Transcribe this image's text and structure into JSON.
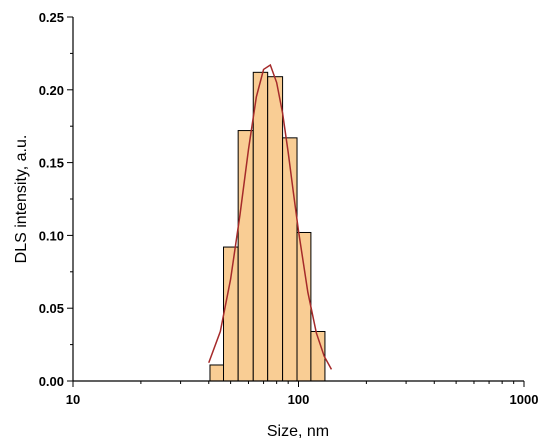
{
  "chart_data": {
    "type": "histogram",
    "xlabel": "Size, nm",
    "ylabel": "DLS intensity, a.u.",
    "bins": [
      40.5,
      46.5,
      54,
      63,
      73,
      85,
      98.5,
      113.5,
      131
    ],
    "counts": [
      0.011,
      0.092,
      0.172,
      0.212,
      0.209,
      0.167,
      0.102,
      0.034
    ],
    "color": "#f9cd94",
    "edgecolor": "#000000",
    "fit": {
      "x": [
        40,
        45,
        50,
        55,
        60,
        65,
        70,
        75,
        80,
        85,
        90,
        95,
        100,
        110,
        120,
        130,
        140
      ],
      "values": [
        0.0125,
        0.034,
        0.07,
        0.114,
        0.159,
        0.195,
        0.214,
        0.217,
        0.205,
        0.184,
        0.157,
        0.129,
        0.103,
        0.061,
        0.033,
        0.017,
        0.008
      ],
      "color": "#a52a2a"
    },
    "xscale": "log",
    "xlim": [
      10,
      1000
    ],
    "xticks": [
      10,
      100,
      1000
    ],
    "ylim": [
      0,
      0.25
    ],
    "yticks": [
      {
        "value": 0,
        "label": "0.00"
      },
      {
        "value": 0.05,
        "label": "0.05"
      },
      {
        "value": 0.1,
        "label": "0.10"
      },
      {
        "value": 0.15,
        "label": "0.15"
      },
      {
        "value": 0.2,
        "label": "0.20"
      },
      {
        "value": 0.25,
        "label": "0.25"
      }
    ]
  }
}
